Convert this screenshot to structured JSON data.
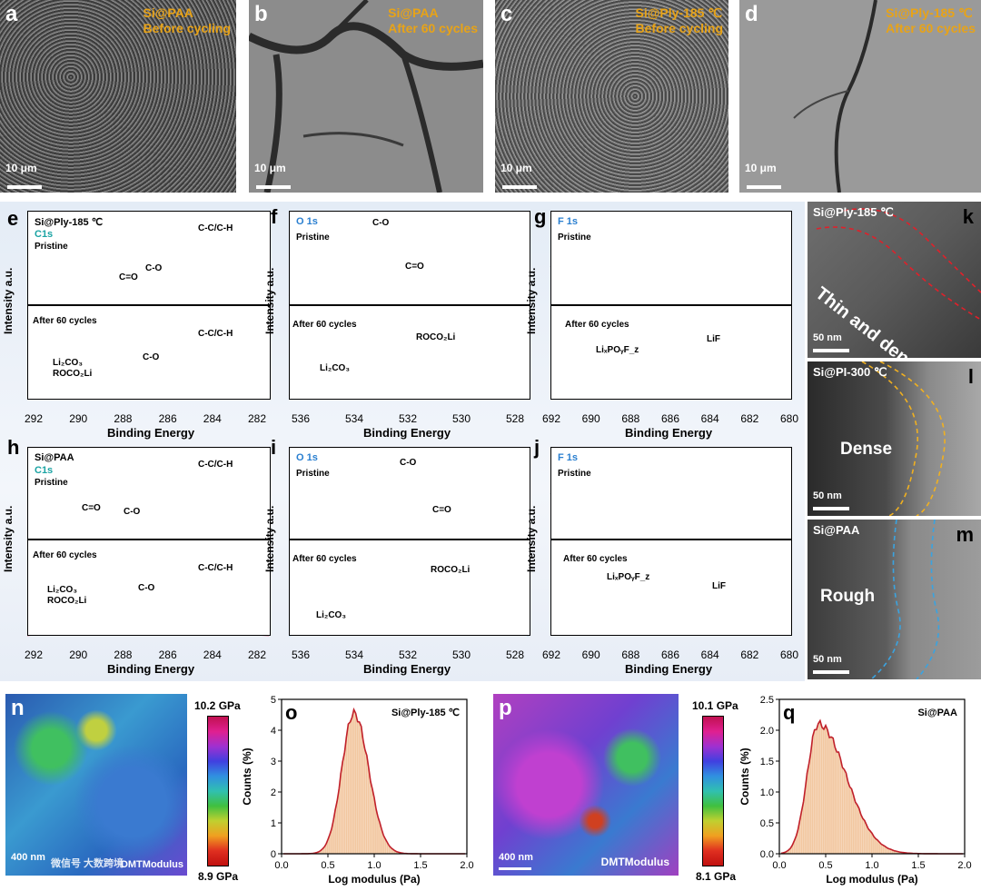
{
  "sem": [
    {
      "letter": "a",
      "line1": "Si@PAA",
      "line2": "Before cycling",
      "scale": "10 μm"
    },
    {
      "letter": "b",
      "line1": "Si@PAA",
      "line2": "After 60 cycles",
      "scale": "10 μm"
    },
    {
      "letter": "c",
      "line1": "Si@Ply-185 ℃",
      "line2": "Before cycling",
      "scale": "10 μm"
    },
    {
      "letter": "d",
      "line1": "Si@Ply-185 ℃",
      "line2": "After 60 cycles",
      "scale": "10 μm"
    }
  ],
  "xps": {
    "xlabel": "Binding Energy",
    "ylabel": "Intensity a.u.",
    "pristine": "Pristine",
    "after": "After 60 cycles",
    "c1s_ticks": [
      "292",
      "290",
      "288",
      "286",
      "284",
      "282"
    ],
    "o1s_ticks": [
      "536",
      "534",
      "532",
      "530",
      "528"
    ],
    "f1s_ticks": [
      "692",
      "690",
      "688",
      "686",
      "684",
      "682",
      "680"
    ],
    "e": {
      "letter": "e",
      "sample": "Si@Ply-185 ℃",
      "core": "C1s",
      "peak1": "C-C/C-H",
      "peak2": "C-O",
      "peak3": "C=O",
      "after1": "C-C/C-H",
      "after2": "C-O",
      "after3a": "Li₂CO₃",
      "after3b": "ROCO₂Li"
    },
    "f": {
      "letter": "f",
      "core": "O 1s",
      "peak1": "C-O",
      "peak2": "C=O",
      "after1": "ROCO₂Li",
      "after2": "Li₂CO₃"
    },
    "g": {
      "letter": "g",
      "core": "F 1s",
      "after1": "LiₓPOᵧF_z",
      "after2": "LiF"
    },
    "h": {
      "letter": "h",
      "sample": "Si@PAA",
      "core": "C1s",
      "peak1": "C-C/C-H",
      "peak2": "C-O",
      "peak3": "C=O",
      "after1": "C-C/C-H",
      "after2": "C-O",
      "after3a": "Li₂CO₃",
      "after3b": "ROCO₂Li"
    },
    "i": {
      "letter": "i",
      "core": "O 1s",
      "peak1": "C-O",
      "peak2": "C=O",
      "after1": "ROCO₂Li",
      "after2": "Li₂CO₃"
    },
    "j": {
      "letter": "j",
      "core": "F 1s",
      "after1": "LiₓPOᵧF_z",
      "after2": "LiF"
    }
  },
  "tem": [
    {
      "letter": "k",
      "caption": "Si@Ply-185 ℃",
      "label": "Thin and dense",
      "scale": "50 nm"
    },
    {
      "letter": "l",
      "caption": "Si@PI-300 ℃",
      "label": "Dense",
      "scale": "50 nm"
    },
    {
      "letter": "m",
      "caption": "Si@PAA",
      "label": "Rough",
      "scale": "50 nm"
    }
  ],
  "afm": [
    {
      "letter": "n",
      "scale": "400 nm",
      "mode": "DMTModulus",
      "max": "10.2 GPa",
      "min": "8.9 GPa",
      "watermark": "微信号 大数跨境"
    },
    {
      "letter": "p",
      "scale": "400 nm",
      "mode": "DMTModulus",
      "max": "10.1 GPa",
      "min": "8.1 GPa"
    }
  ],
  "chart_data": [
    {
      "type": "bar",
      "letter": "o",
      "title": "Si@Ply-185 ℃",
      "xlabel": "Log modulus (Pa)",
      "ylabel": "Counts (%)",
      "xlim": [
        0,
        2.0
      ],
      "ylim": [
        0,
        5
      ],
      "xticks": [
        "0.0",
        "0.5",
        "1.0",
        "1.5",
        "2.0"
      ],
      "yticks": [
        "0",
        "1",
        "2",
        "3",
        "4",
        "5"
      ],
      "peak_x": 0.78,
      "peak_y": 4.55,
      "sigma_left": 0.13,
      "sigma_right": 0.16
    },
    {
      "type": "bar",
      "letter": "q",
      "title": "Si@PAA",
      "xlabel": "Log modulus (Pa)",
      "ylabel": "Counts (%)",
      "xlim": [
        0,
        2.0
      ],
      "ylim": [
        0,
        2.5
      ],
      "xticks": [
        "0.0",
        "0.5",
        "1.0",
        "1.5",
        "2.0"
      ],
      "yticks": [
        "0.0",
        "0.5",
        "1.0",
        "1.5",
        "2.0",
        "2.5"
      ],
      "peak_x": 0.42,
      "peak_y": 2.1,
      "sigma_left": 0.12,
      "sigma_right": 0.3
    }
  ]
}
